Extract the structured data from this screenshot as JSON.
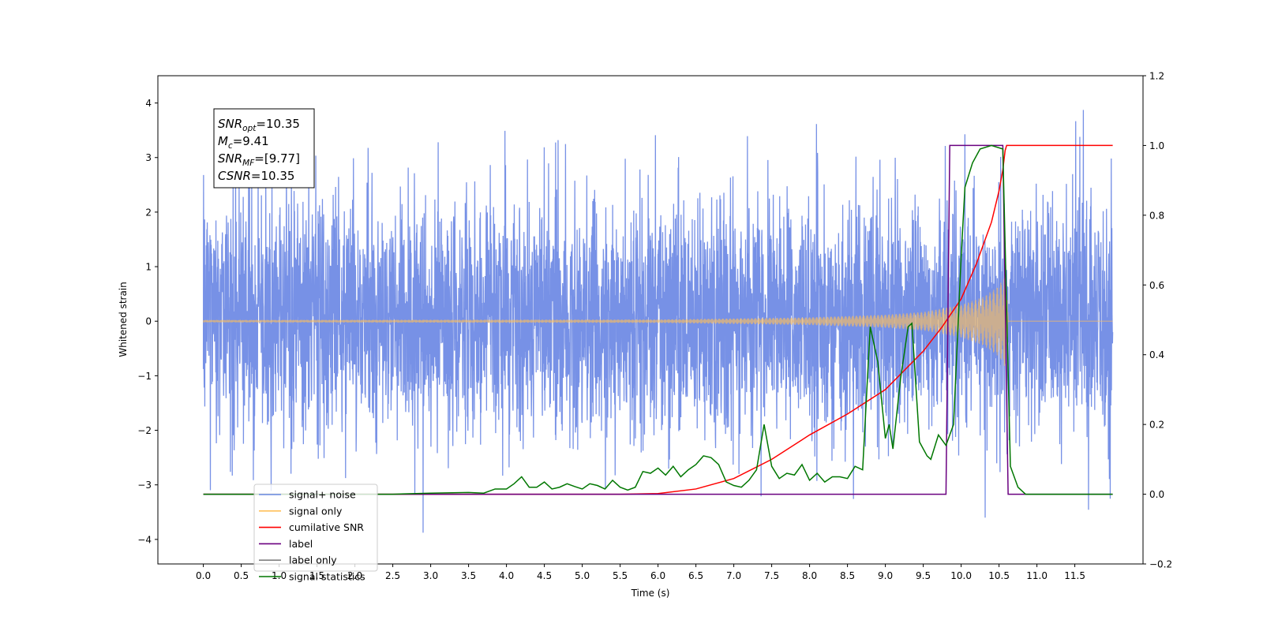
{
  "chart_data": {
    "type": "line",
    "xlabel": "Time (s)",
    "ylabel": "Whitened strain",
    "ylabel_right": "",
    "xlim": [
      -0.6,
      12.4
    ],
    "ylim_left": [
      -4.45,
      4.5
    ],
    "ylim_right": [
      -0.2,
      1.2
    ],
    "x_ticks": [
      "0.0",
      "0.5",
      "1.0",
      "1.5",
      "2.0",
      "2.5",
      "3.0",
      "3.5",
      "4.0",
      "4.5",
      "5.0",
      "5.5",
      "6.0",
      "6.5",
      "7.0",
      "7.5",
      "8.0",
      "8.5",
      "9.0",
      "9.5",
      "10.0",
      "10.5",
      "11.0",
      "11.5"
    ],
    "y_ticks_left": [
      4,
      3,
      2,
      1,
      0,
      -1,
      -2,
      -3,
      -4
    ],
    "y_ticks_left_labels": [
      "4",
      "3",
      "2",
      "1",
      "0",
      "−1",
      "−2",
      "−3",
      "−4"
    ],
    "y_ticks_right": [
      1.2,
      1.0,
      0.8,
      0.6,
      0.4,
      0.2,
      0.0,
      -0.2
    ],
    "y_ticks_right_labels": [
      "1.2",
      "1.0",
      "0.8",
      "0.6",
      "0.4",
      "0.2",
      "0.0",
      "−0.2"
    ],
    "legend": {
      "placement": "lower-left",
      "entries": [
        {
          "name": "signal+ noise",
          "color": "#6b88e4"
        },
        {
          "name": "signal only",
          "color": "#ffc05a"
        },
        {
          "name": "cumilative SNR",
          "color": "#ff0000"
        },
        {
          "name": "label",
          "color": "#6a0080"
        },
        {
          "name": "label only",
          "color": "#808080"
        },
        {
          "name": "signal statistics",
          "color": "#007700"
        }
      ]
    },
    "annotation": {
      "lines": [
        {
          "main": "SNR",
          "sub": "opt",
          "value": "=10.35"
        },
        {
          "main": "M",
          "sub": "c",
          "value": "=9.41"
        },
        {
          "main": "SNR",
          "sub": "MF",
          "value": "=[9.77]"
        },
        {
          "main": "CSNR",
          "sub": "",
          "value": "=10.35"
        }
      ]
    },
    "series": [
      {
        "name": "signal+ noise",
        "axis": "left",
        "color": "#6b88e4",
        "kind": "noise",
        "x_range": [
          0.0,
          12.0
        ],
        "sigma": 1.0,
        "min": -4.0,
        "max": 4.1
      },
      {
        "name": "signal only",
        "axis": "left",
        "color": "#ffc05a",
        "kind": "chirp",
        "x_range": [
          0.0,
          12.0
        ],
        "merger_time": 10.62,
        "envelope": [
          [
            0.0,
            0.02
          ],
          [
            6.0,
            0.03
          ],
          [
            7.0,
            0.05
          ],
          [
            8.0,
            0.07
          ],
          [
            9.0,
            0.12
          ],
          [
            9.5,
            0.17
          ],
          [
            10.0,
            0.3
          ],
          [
            10.3,
            0.45
          ],
          [
            10.5,
            0.65
          ],
          [
            10.6,
            0.9
          ],
          [
            10.62,
            0.0
          ],
          [
            12.0,
            0.0
          ]
        ]
      },
      {
        "name": "cumilative SNR",
        "axis": "right",
        "color": "#ff0000",
        "points": [
          [
            0.0,
            0.0
          ],
          [
            5.5,
            0.0
          ],
          [
            6.0,
            0.002
          ],
          [
            6.5,
            0.015
          ],
          [
            7.0,
            0.045
          ],
          [
            7.5,
            0.1
          ],
          [
            8.0,
            0.17
          ],
          [
            8.5,
            0.23
          ],
          [
            9.0,
            0.3
          ],
          [
            9.5,
            0.41
          ],
          [
            9.75,
            0.48
          ],
          [
            10.0,
            0.56
          ],
          [
            10.2,
            0.66
          ],
          [
            10.4,
            0.78
          ],
          [
            10.5,
            0.87
          ],
          [
            10.55,
            0.93
          ],
          [
            10.58,
            0.985
          ],
          [
            10.6,
            1.0
          ],
          [
            12.0,
            1.0
          ]
        ]
      },
      {
        "name": "label",
        "axis": "right",
        "color": "#6a0080",
        "points": [
          [
            0.0,
            0.0
          ],
          [
            9.8,
            0.0
          ],
          [
            9.85,
            1.0
          ],
          [
            10.55,
            1.0
          ],
          [
            10.62,
            0.0
          ],
          [
            12.0,
            0.0
          ]
        ]
      },
      {
        "name": "signal statistics",
        "axis": "right",
        "color": "#007700",
        "points": [
          [
            0.0,
            0.0
          ],
          [
            2.5,
            0.0
          ],
          [
            3.0,
            0.003
          ],
          [
            3.5,
            0.005
          ],
          [
            3.7,
            0.003
          ],
          [
            3.85,
            0.015
          ],
          [
            4.0,
            0.015
          ],
          [
            4.1,
            0.03
          ],
          [
            4.2,
            0.05
          ],
          [
            4.3,
            0.02
          ],
          [
            4.4,
            0.02
          ],
          [
            4.5,
            0.035
          ],
          [
            4.6,
            0.015
          ],
          [
            4.7,
            0.02
          ],
          [
            4.8,
            0.03
          ],
          [
            4.9,
            0.022
          ],
          [
            5.0,
            0.015
          ],
          [
            5.1,
            0.03
          ],
          [
            5.2,
            0.025
          ],
          [
            5.3,
            0.015
          ],
          [
            5.4,
            0.04
          ],
          [
            5.5,
            0.02
          ],
          [
            5.6,
            0.012
          ],
          [
            5.7,
            0.02
          ],
          [
            5.8,
            0.065
          ],
          [
            5.9,
            0.06
          ],
          [
            6.0,
            0.075
          ],
          [
            6.1,
            0.055
          ],
          [
            6.2,
            0.08
          ],
          [
            6.3,
            0.05
          ],
          [
            6.4,
            0.07
          ],
          [
            6.5,
            0.085
          ],
          [
            6.6,
            0.11
          ],
          [
            6.7,
            0.105
          ],
          [
            6.8,
            0.085
          ],
          [
            6.9,
            0.035
          ],
          [
            7.0,
            0.025
          ],
          [
            7.1,
            0.02
          ],
          [
            7.2,
            0.04
          ],
          [
            7.3,
            0.07
          ],
          [
            7.4,
            0.2
          ],
          [
            7.5,
            0.08
          ],
          [
            7.6,
            0.045
          ],
          [
            7.7,
            0.06
          ],
          [
            7.8,
            0.055
          ],
          [
            7.9,
            0.085
          ],
          [
            8.0,
            0.04
          ],
          [
            8.1,
            0.06
          ],
          [
            8.2,
            0.035
          ],
          [
            8.3,
            0.05
          ],
          [
            8.4,
            0.05
          ],
          [
            8.5,
            0.045
          ],
          [
            8.6,
            0.08
          ],
          [
            8.7,
            0.07
          ],
          [
            8.8,
            0.48
          ],
          [
            8.9,
            0.38
          ],
          [
            9.0,
            0.16
          ],
          [
            9.05,
            0.2
          ],
          [
            9.1,
            0.13
          ],
          [
            9.2,
            0.33
          ],
          [
            9.3,
            0.48
          ],
          [
            9.35,
            0.49
          ],
          [
            9.45,
            0.15
          ],
          [
            9.55,
            0.11
          ],
          [
            9.6,
            0.1
          ],
          [
            9.7,
            0.17
          ],
          [
            9.8,
            0.14
          ],
          [
            9.9,
            0.2
          ],
          [
            10.0,
            0.68
          ],
          [
            10.05,
            0.88
          ],
          [
            10.15,
            0.95
          ],
          [
            10.25,
            0.99
          ],
          [
            10.4,
            1.0
          ],
          [
            10.55,
            0.99
          ],
          [
            10.65,
            0.08
          ],
          [
            10.75,
            0.02
          ],
          [
            10.85,
            0.0
          ],
          [
            12.0,
            0.0
          ]
        ]
      }
    ]
  }
}
